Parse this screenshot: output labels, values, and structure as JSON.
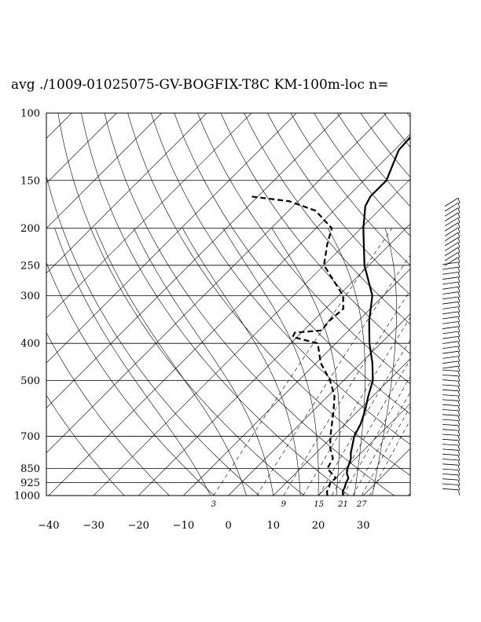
{
  "chart_data": {
    "type": "line",
    "chart_kind": "skew-T log-P diagram",
    "title": "avg ./1009-01025075-GV-BOGFIX-T8C KM-100m-loc n=",
    "x_axis": {
      "ticks": [
        -40,
        -30,
        -20,
        -10,
        0,
        10,
        20,
        30
      ],
      "tick_labels": [
        "−40",
        "−30",
        "−20",
        "−10",
        "0",
        "10",
        "20",
        "30"
      ]
    },
    "y_axis": {
      "scale": "log",
      "range": [
        1000,
        100
      ],
      "ticks": [
        100,
        150,
        200,
        250,
        300,
        400,
        500,
        700,
        850,
        925,
        1000
      ],
      "tick_labels": [
        "100",
        "150",
        "200",
        "250",
        "300",
        "400",
        "500",
        "700",
        "850",
        "925",
        "1000"
      ]
    },
    "mixing_ratio_labels": [
      "3",
      "9",
      "15",
      "21",
      "27"
    ],
    "series": [
      {
        "style": "solid",
        "points": [
          [
            1000,
            25.5
          ],
          [
            975,
            24.5
          ],
          [
            950,
            24.0
          ],
          [
            925,
            23.3
          ],
          [
            900,
            22.8
          ],
          [
            875,
            21.4
          ],
          [
            850,
            20.5
          ],
          [
            800,
            19.0
          ],
          [
            775,
            17.8
          ],
          [
            700,
            14.8
          ],
          [
            650,
            13.5
          ],
          [
            600,
            11.5
          ],
          [
            550,
            9.0
          ],
          [
            500,
            6.5
          ],
          [
            450,
            2.5
          ],
          [
            400,
            -2.5
          ],
          [
            350,
            -7.5
          ],
          [
            300,
            -12.5
          ],
          [
            250,
            -21.0
          ],
          [
            200,
            -29.5
          ],
          [
            175,
            -34.0
          ],
          [
            165,
            -35.0
          ],
          [
            150,
            -35.0
          ],
          [
            125,
            -39.0
          ],
          [
            110,
            -39.5
          ],
          [
            100,
            -38.0
          ]
        ]
      },
      {
        "style": "dashed",
        "points": [
          [
            1000,
            22.0
          ],
          [
            975,
            21.0
          ],
          [
            950,
            20.5
          ],
          [
            925,
            19.8
          ],
          [
            900,
            20.0
          ],
          [
            850,
            16.0
          ],
          [
            800,
            15.0
          ],
          [
            750,
            12.0
          ],
          [
            700,
            9.5
          ],
          [
            600,
            4.5
          ],
          [
            550,
            1.5
          ],
          [
            500,
            -3.0
          ],
          [
            450,
            -9.0
          ],
          [
            400,
            -14.0
          ],
          [
            385,
            -21.0
          ],
          [
            375,
            -21.5
          ],
          [
            370,
            -16.0
          ],
          [
            350,
            -16.5
          ],
          [
            325,
            -16.0
          ],
          [
            300,
            -19.0
          ],
          [
            250,
            -30.0
          ],
          [
            220,
            -34.0
          ],
          [
            200,
            -36.5
          ],
          [
            180,
            -44.0
          ],
          [
            170,
            -52.0
          ],
          [
            165,
            -62.0
          ]
        ]
      }
    ],
    "wind_barbs": true,
    "grid": true
  }
}
